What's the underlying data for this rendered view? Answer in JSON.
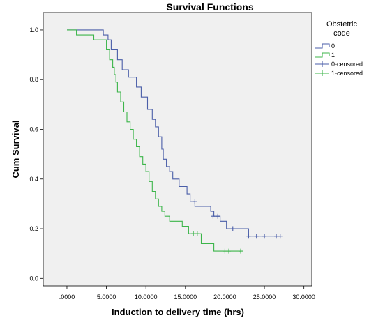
{
  "chart_data": {
    "type": "line",
    "title": "Survival Functions",
    "xlabel": "Induction to delivery time (hrs)",
    "ylabel": "Cum Survival",
    "xlim": [
      -3,
      31
    ],
    "ylim": [
      -0.03,
      1.07
    ],
    "x_ticks": [
      0,
      5,
      10,
      15,
      20,
      25,
      30
    ],
    "x_tick_labels": [
      ".0000",
      "5.0000",
      "10.0000",
      "15.0000",
      "20.0000",
      "25.0000",
      "30.0000"
    ],
    "y_ticks": [
      0,
      0.2,
      0.4,
      0.6,
      0.8,
      1.0
    ],
    "y_tick_labels": [
      "0.0",
      "0.2",
      "0.4",
      "0.6",
      "0.8",
      "1.0"
    ],
    "grid": false,
    "legend": {
      "title": "Obstetric code",
      "title_lines": [
        "Obstetric",
        "code"
      ],
      "placement": "right",
      "entries": [
        {
          "label": "0",
          "kind": "line",
          "series": 0
        },
        {
          "label": "1",
          "kind": "line",
          "series": 1
        },
        {
          "label": "0-censored",
          "kind": "censor",
          "series": 0
        },
        {
          "label": "1-censored",
          "kind": "censor",
          "series": 1
        }
      ]
    },
    "series": [
      {
        "name": "0",
        "color": "#4a5ea8",
        "steps": [
          [
            0,
            1.0
          ],
          [
            4.6,
            0.98
          ],
          [
            5.2,
            0.96
          ],
          [
            5.6,
            0.92
          ],
          [
            6.4,
            0.88
          ],
          [
            7.0,
            0.84
          ],
          [
            7.8,
            0.81
          ],
          [
            8.8,
            0.77
          ],
          [
            9.4,
            0.73
          ],
          [
            10.2,
            0.68
          ],
          [
            10.8,
            0.64
          ],
          [
            11.2,
            0.61
          ],
          [
            11.6,
            0.57
          ],
          [
            12.0,
            0.52
          ],
          [
            12.2,
            0.48
          ],
          [
            12.6,
            0.45
          ],
          [
            13.0,
            0.43
          ],
          [
            13.4,
            0.4
          ],
          [
            14.2,
            0.37
          ],
          [
            15.2,
            0.34
          ],
          [
            15.6,
            0.31
          ],
          [
            16.2,
            0.29
          ],
          [
            18.2,
            0.27
          ],
          [
            18.6,
            0.25
          ],
          [
            19.4,
            0.23
          ],
          [
            20.2,
            0.2
          ],
          [
            23.0,
            0.17
          ],
          [
            27.0,
            0.17
          ]
        ],
        "censored": [
          [
            16.2,
            0.31
          ],
          [
            18.5,
            0.25
          ],
          [
            19.1,
            0.25
          ],
          [
            21.0,
            0.2
          ],
          [
            23.0,
            0.17
          ],
          [
            24.0,
            0.17
          ],
          [
            25.0,
            0.17
          ],
          [
            26.5,
            0.17
          ],
          [
            27.0,
            0.17
          ]
        ]
      },
      {
        "name": "1",
        "color": "#3cb54a",
        "steps": [
          [
            0,
            1.0
          ],
          [
            1.2,
            0.98
          ],
          [
            3.4,
            0.96
          ],
          [
            5.0,
            0.92
          ],
          [
            5.4,
            0.88
          ],
          [
            5.8,
            0.85
          ],
          [
            6.0,
            0.82
          ],
          [
            6.2,
            0.79
          ],
          [
            6.4,
            0.75
          ],
          [
            6.8,
            0.71
          ],
          [
            7.2,
            0.67
          ],
          [
            7.6,
            0.63
          ],
          [
            8.0,
            0.6
          ],
          [
            8.4,
            0.56
          ],
          [
            8.8,
            0.53
          ],
          [
            9.2,
            0.49
          ],
          [
            9.6,
            0.46
          ],
          [
            10.0,
            0.43
          ],
          [
            10.4,
            0.39
          ],
          [
            10.8,
            0.35
          ],
          [
            11.2,
            0.32
          ],
          [
            11.6,
            0.29
          ],
          [
            12.0,
            0.27
          ],
          [
            12.4,
            0.25
          ],
          [
            13.0,
            0.23
          ],
          [
            14.6,
            0.21
          ],
          [
            15.4,
            0.18
          ],
          [
            17.0,
            0.14
          ],
          [
            18.6,
            0.11
          ],
          [
            22.0,
            0.11
          ]
        ],
        "censored": [
          [
            16.0,
            0.18
          ],
          [
            16.5,
            0.18
          ],
          [
            20.0,
            0.11
          ],
          [
            20.5,
            0.11
          ],
          [
            22.0,
            0.11
          ]
        ]
      }
    ]
  }
}
